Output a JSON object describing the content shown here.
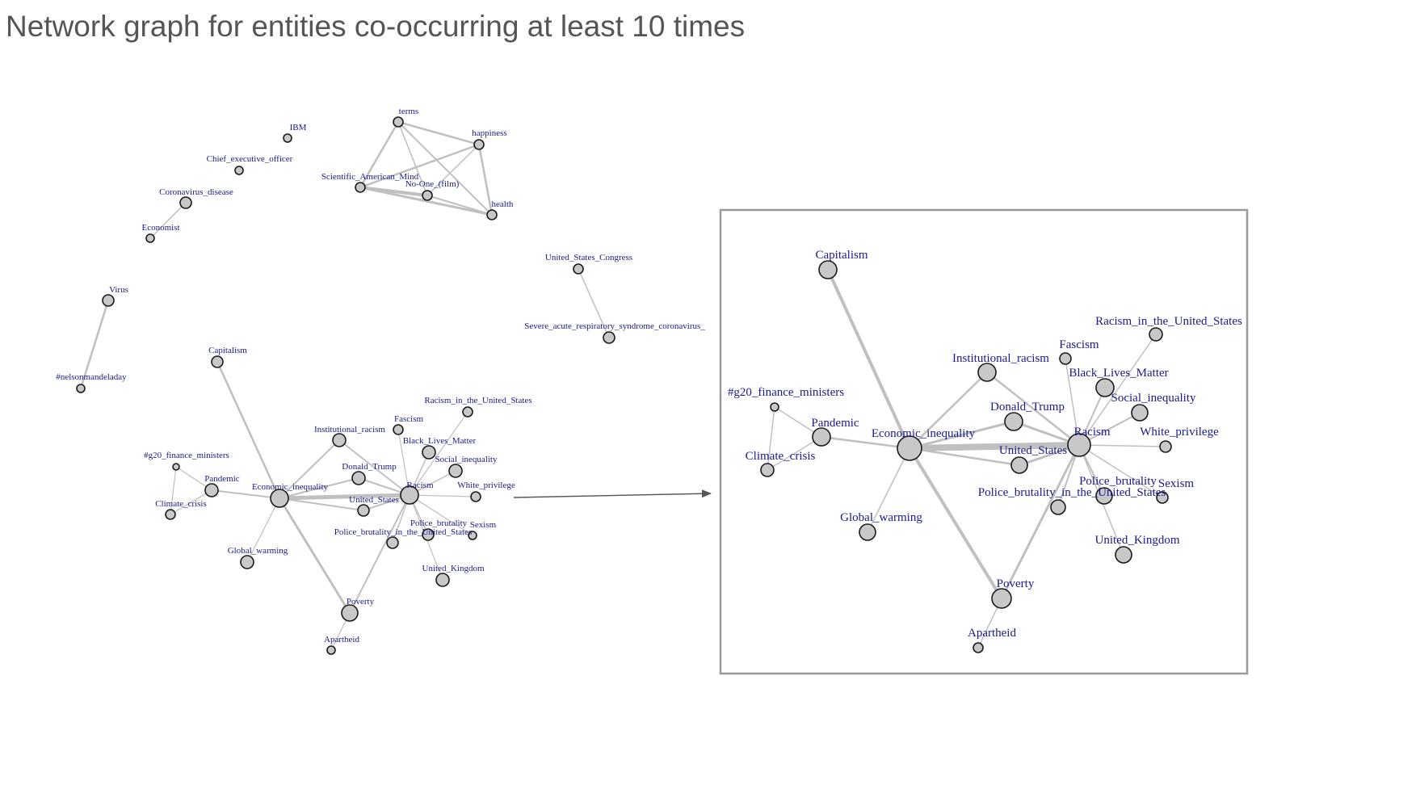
{
  "title": "Network graph for entities co-occurring at least 10 times",
  "colors": {
    "edge": "#c0c0c0",
    "node_fill": "#c8c8c8",
    "node_stroke": "#1a1a1a",
    "label": "#1a1a8c",
    "title": "#555555",
    "zoom_frame": "#999999"
  },
  "labels": {
    "terms": "terms",
    "happiness": "happiness",
    "sam": "Scientific_American_Mind",
    "noone": "No-One_(film)",
    "health": "health",
    "ibm": "IBM",
    "ceo": "Chief_executive_officer",
    "covid": "Coronavirus_disease",
    "economist": "Economist",
    "virus": "Virus",
    "nmday": "#nelsonmandeladay",
    "usc": "United_States_Congress",
    "sars": "Severe_acute_respiratory_syndrome_coronavirus_",
    "capitalism": "Capitalism",
    "g20": "#g20_finance_ministers",
    "pandemic": "Pandemic",
    "climate": "Climate_crisis",
    "econineq": "Economic_inequality",
    "instracism": "Institutional_racism",
    "trump": "Donald_Trump",
    "us": "United_States",
    "racism": "Racism",
    "racismus": "Racism_in_the_United_States",
    "fascism": "Fascism",
    "blm": "Black_Lives_Matter",
    "socineq": "Social_inequality",
    "whitepriv": "White_privilege",
    "policebrut": "Police_brutality",
    "policebrutus": "Police_brutality_in_the_United_States",
    "sexism": "Sexism",
    "uk": "United_Kingdom",
    "globalwarming": "Global_warming",
    "poverty": "Poverty",
    "apartheid": "Apartheid"
  }
}
